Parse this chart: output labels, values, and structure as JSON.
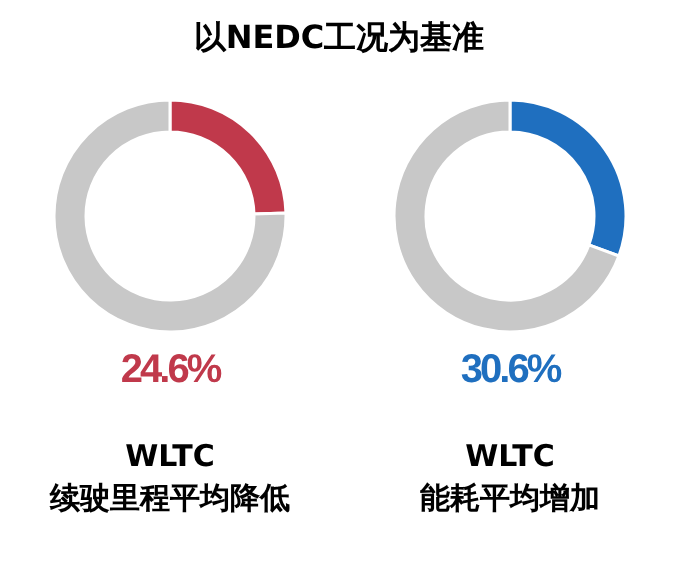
{
  "chart_data": [
    {
      "type": "donut",
      "title": "以NEDC工况为基准",
      "categories": [
        null,
        null
      ],
      "values": [
        24.6,
        75.4
      ],
      "colors": [
        "#c0394b",
        "#c8c8c8"
      ],
      "annotations": [
        "24.6%",
        "WLTC",
        "续驶里程平均降低"
      ]
    },
    {
      "type": "donut",
      "categories": [
        null,
        null
      ],
      "values": [
        30.6,
        69.4
      ],
      "colors": [
        "#1f6fbf",
        "#c8c8c8"
      ],
      "annotations": [
        "30.6%",
        "WLTC",
        "能耗平均增加"
      ]
    }
  ]
}
